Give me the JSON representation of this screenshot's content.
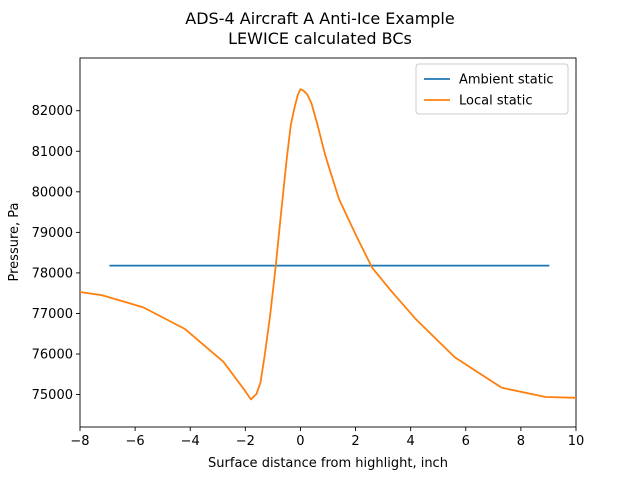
{
  "chart_data": {
    "type": "line",
    "title": "ADS-4 Aircraft A Anti-Ice Example",
    "subtitle": "LEWICE calculated BCs",
    "xlabel": "Surface distance from highlight, inch",
    "ylabel": "Pressure, Pa",
    "xlim": [
      -8,
      10
    ],
    "ylim": [
      74200,
      83300
    ],
    "xticks": [
      -8,
      -6,
      -4,
      -2,
      0,
      2,
      4,
      6,
      8,
      10
    ],
    "xtick_labels": [
      "−8",
      "−6",
      "−4",
      "−2",
      "0",
      "2",
      "4",
      "6",
      "8",
      "10"
    ],
    "yticks": [
      75000,
      76000,
      77000,
      78000,
      79000,
      80000,
      81000,
      82000
    ],
    "ytick_labels": [
      "75000",
      "76000",
      "77000",
      "78000",
      "79000",
      "80000",
      "81000",
      "82000"
    ],
    "grid": false,
    "legend_position": "top-right",
    "series": [
      {
        "name": "Ambient static",
        "color": "#1f77b4",
        "x": [
          -6.9,
          9.0
        ],
        "y": [
          78180,
          78180
        ]
      },
      {
        "name": "Local static",
        "color": "#ff7f0e",
        "x": [
          -8.0,
          -7.2,
          -5.7,
          -4.2,
          -2.8,
          -2.05,
          -1.8,
          -1.6,
          -1.45,
          -1.3,
          -1.1,
          -0.9,
          -0.7,
          -0.5,
          -0.35,
          -0.2,
          -0.1,
          0.0,
          0.1,
          0.25,
          0.4,
          0.6,
          0.9,
          1.4,
          2.0,
          2.6,
          3.3,
          4.2,
          5.6,
          7.3,
          8.9,
          10.0
        ],
        "y": [
          77530,
          77450,
          77150,
          76620,
          75810,
          75130,
          74880,
          75010,
          75300,
          75950,
          76950,
          78150,
          79500,
          80800,
          81650,
          82120,
          82380,
          82530,
          82500,
          82400,
          82180,
          81700,
          80900,
          79820,
          78950,
          78130,
          77550,
          76850,
          75920,
          75170,
          74940,
          74920
        ]
      }
    ]
  }
}
